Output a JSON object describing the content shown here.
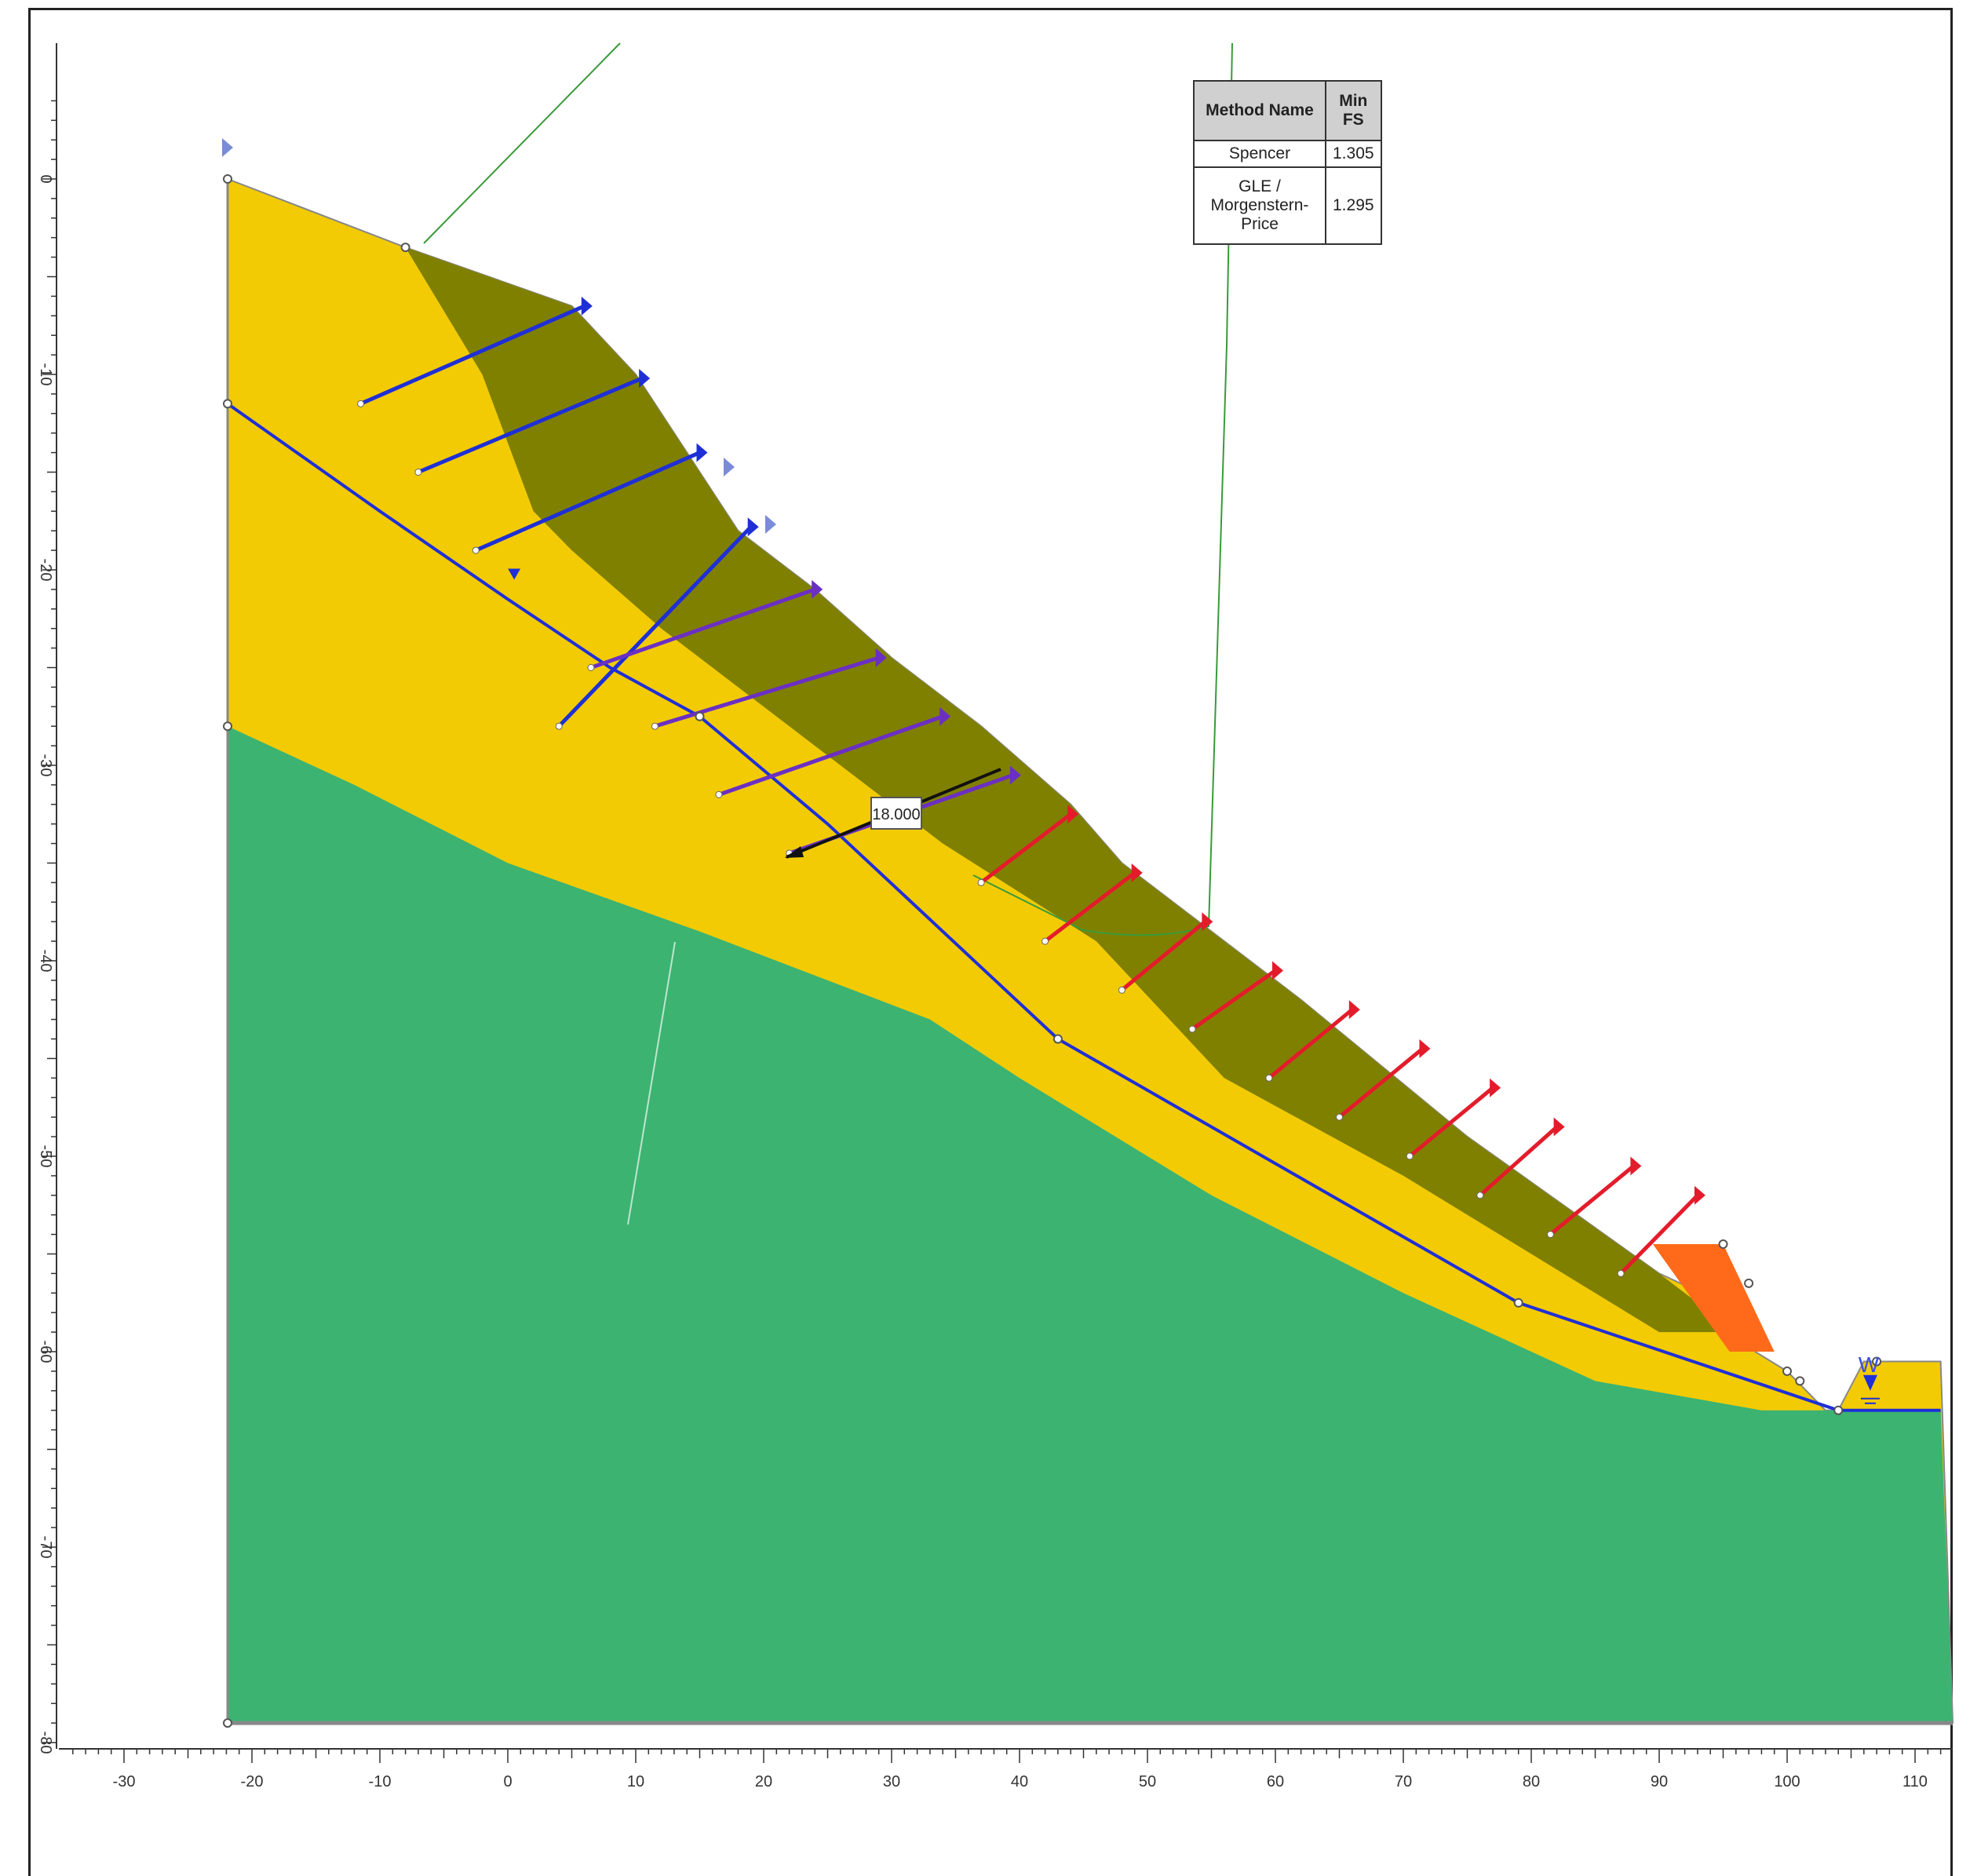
{
  "results_table": {
    "header_method": "Method Name",
    "header_fs": "Min FS",
    "rows": [
      {
        "method": "Spencer",
        "fs": "1.305"
      },
      {
        "method": "GLE / Morgenstern-Price",
        "fs": "1.295"
      }
    ]
  },
  "dimension_label": "18.000",
  "water_label": "W",
  "x_axis": {
    "min": -30,
    "max": 110,
    "ticks": [
      -30,
      -20,
      -10,
      0,
      10,
      20,
      30,
      40,
      50,
      60,
      70,
      80,
      90,
      100,
      110
    ]
  },
  "y_axis": {
    "min": -80,
    "max": 0,
    "ticks": [
      0,
      -10,
      -20,
      -30,
      -40,
      -50,
      -60,
      -70,
      -80
    ],
    "tick_text": [
      "0",
      "-10",
      "-20",
      "-30",
      "-40",
      "-50",
      "-60",
      "-70",
      "-80"
    ]
  },
  "geometry": {
    "ground_surface": [
      [
        -22,
        0
      ],
      [
        -8,
        -3.5
      ],
      [
        5,
        -6.5
      ],
      [
        10,
        -10
      ],
      [
        14,
        -14
      ],
      [
        18,
        -18
      ],
      [
        24,
        -21
      ],
      [
        30,
        -24.5
      ],
      [
        37,
        -28
      ],
      [
        44,
        -32
      ],
      [
        48,
        -35
      ],
      [
        54,
        -38
      ],
      [
        62,
        -42
      ],
      [
        75,
        -49
      ],
      [
        90,
        -56
      ],
      [
        95,
        -57.5
      ],
      [
        97.5,
        -60
      ],
      [
        100,
        -61
      ],
      [
        103,
        -63
      ],
      [
        104,
        -63
      ],
      [
        106,
        -60.5
      ],
      [
        112,
        -60.5
      ]
    ],
    "weak_layer_bottom": [
      [
        -8,
        -3.5
      ],
      [
        -2,
        -10
      ],
      [
        2,
        -17
      ],
      [
        5,
        -19
      ],
      [
        12,
        -23
      ],
      [
        24,
        -29
      ],
      [
        34,
        -34
      ],
      [
        46,
        -39
      ],
      [
        56,
        -46
      ],
      [
        70,
        -51
      ],
      [
        90,
        -59
      ],
      [
        96,
        -59
      ]
    ],
    "yellow_bottom": [
      [
        -22,
        -28
      ],
      [
        -12,
        -31
      ],
      [
        0,
        -35
      ],
      [
        15,
        -38.5
      ],
      [
        33,
        -43
      ],
      [
        40,
        -46
      ],
      [
        55,
        -52
      ],
      [
        70,
        -57
      ],
      [
        85,
        -61.5
      ],
      [
        98,
        -63
      ],
      [
        104,
        -63
      ],
      [
        112,
        -63
      ]
    ],
    "water_table": [
      [
        -22,
        -11.5
      ],
      [
        -10,
        -17
      ],
      [
        0,
        -21.5
      ],
      [
        8,
        -25
      ],
      [
        15,
        -27.5
      ],
      [
        25,
        -33
      ],
      [
        43,
        -44
      ],
      [
        79,
        -57.5
      ],
      [
        104,
        -63
      ],
      [
        112,
        -63
      ]
    ],
    "orange_block": [
      [
        89.5,
        -54.5
      ],
      [
        95,
        -54.5
      ],
      [
        99,
        -60
      ],
      [
        95.5,
        -60
      ]
    ]
  },
  "colors": {
    "yellow": "#f2cb05",
    "olive": "#808000",
    "green": "#3cb371",
    "orange": "#ff6a1a",
    "blue": "#1f2fd6",
    "purple": "#6b2fc4",
    "red": "#e31c2b",
    "guide": "#3a9a3a"
  },
  "anchors": {
    "blue": [
      [
        [
          -11.5,
          -11.5
        ],
        [
          6,
          -6.5
        ]
      ],
      [
        [
          -7,
          -15
        ],
        [
          10.5,
          -10.2
        ]
      ],
      [
        [
          -2.5,
          -19
        ],
        [
          15,
          -14
        ]
      ],
      [
        [
          4,
          -28
        ],
        [
          19,
          -17.8
        ]
      ]
    ],
    "purple": [
      [
        [
          6.5,
          -25
        ],
        [
          24,
          -21
        ]
      ],
      [
        [
          11.5,
          -28
        ],
        [
          29,
          -24.5
        ]
      ],
      [
        [
          16.5,
          -31.5
        ],
        [
          34,
          -27.5
        ]
      ],
      [
        [
          22,
          -34.5
        ],
        [
          39.5,
          -30.5
        ]
      ]
    ],
    "red": [
      [
        [
          37,
          -36
        ],
        [
          44,
          -32.5
        ]
      ],
      [
        [
          42,
          -39
        ],
        [
          49,
          -35.5
        ]
      ],
      [
        [
          48,
          -41.5
        ],
        [
          54.5,
          -38
        ]
      ],
      [
        [
          53.5,
          -43.5
        ],
        [
          60,
          -40.5
        ]
      ],
      [
        [
          59.5,
          -46
        ],
        [
          66,
          -42.5
        ]
      ],
      [
        [
          65,
          -48
        ],
        [
          71.5,
          -44.5
        ]
      ],
      [
        [
          70.5,
          -50
        ],
        [
          77,
          -46.5
        ]
      ],
      [
        [
          76,
          -52
        ],
        [
          82,
          -48.5
        ]
      ],
      [
        [
          81.5,
          -54
        ],
        [
          88,
          -50.5
        ]
      ],
      [
        [
          87,
          -56
        ],
        [
          93,
          -52
        ]
      ]
    ]
  }
}
